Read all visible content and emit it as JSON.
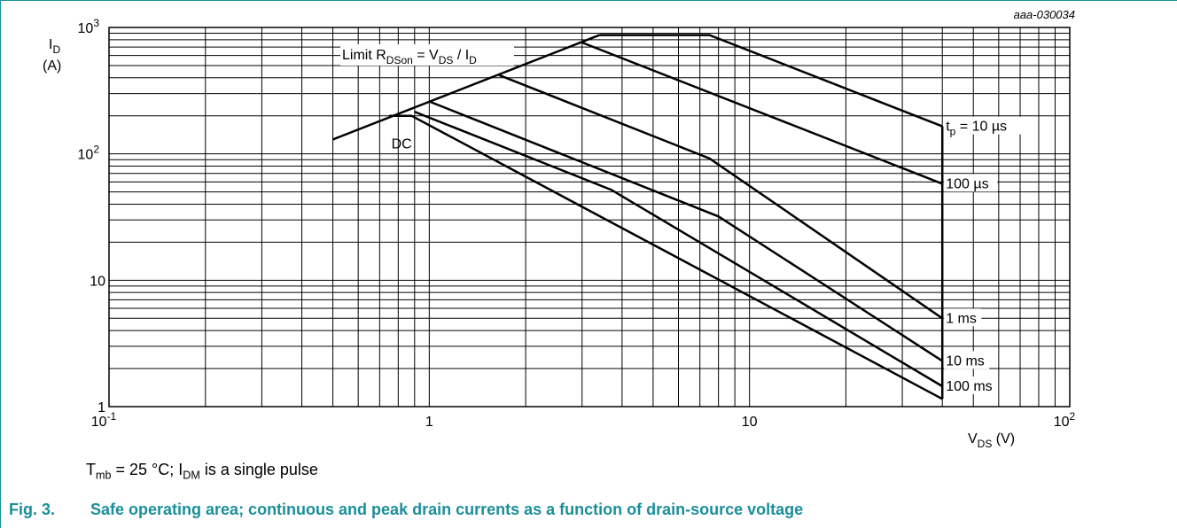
{
  "chart_data": {
    "type": "line",
    "figure_code": "aaa-030034",
    "x_scale": "log",
    "y_scale": "log",
    "xlim": [
      0.1,
      100
    ],
    "ylim": [
      1,
      1000
    ],
    "grid": true,
    "x_tick_labels": [
      {
        "value": 0.1,
        "base": "10",
        "exp": "-1"
      },
      {
        "value": 1,
        "base": "1",
        "exp": ""
      },
      {
        "value": 10,
        "base": "10",
        "exp": ""
      },
      {
        "value": 100,
        "base": "10",
        "exp": "2"
      }
    ],
    "y_tick_labels": [
      {
        "value": 1,
        "base": "1",
        "exp": ""
      },
      {
        "value": 10,
        "base": "10",
        "exp": ""
      },
      {
        "value": 100,
        "base": "10",
        "exp": "2"
      },
      {
        "value": 1000,
        "base": "10",
        "exp": "3"
      }
    ],
    "ylabel": {
      "main": "I",
      "sub": "D",
      "unit": "(A)"
    },
    "xlabel": {
      "main": "V",
      "sub": "DS",
      "unit": " (V)"
    },
    "limit_label": {
      "prefix": "Limit R",
      "sub1": "DSon",
      "mid": " = V",
      "sub2": "DS",
      "sep": " / I",
      "sub3": "D"
    },
    "series": [
      {
        "name": "Limit RDSon",
        "label": "",
        "x": [
          0.5,
          3.4
        ],
        "y": [
          130,
          870
        ]
      },
      {
        "name": "tp = 10 µs",
        "label": "tp = 10 µs",
        "x": [
          3.4,
          7.5,
          40
        ],
        "y": [
          870,
          870,
          165
        ]
      },
      {
        "name": "100 µs",
        "label": "100 µs",
        "x": [
          3.0,
          40
        ],
        "y": [
          760,
          58
        ]
      },
      {
        "name": "1 ms",
        "label": "1 ms",
        "x": [
          1.65,
          7.5,
          40
        ],
        "y": [
          420,
          92,
          5
        ]
      },
      {
        "name": "10 ms",
        "label": "10 ms",
        "x": [
          1.0,
          8.0,
          40
        ],
        "y": [
          260,
          32,
          2.3
        ]
      },
      {
        "name": "100 ms",
        "label": "100 ms",
        "x": [
          0.9,
          3.7,
          40
        ],
        "y": [
          215,
          52,
          1.45
        ]
      },
      {
        "name": "DC",
        "label": "DC",
        "x": [
          0.75,
          0.88,
          40
        ],
        "y": [
          200,
          200,
          1.15
        ]
      },
      {
        "name": "Vmax",
        "label": "",
        "x": [
          40,
          40
        ],
        "y": [
          1.15,
          165
        ]
      }
    ],
    "note": {
      "t": "T",
      "tsub": "mb",
      "mid": " = 25 °C; I",
      "isub": "DM",
      "end": " is a single pulse"
    }
  },
  "caption": {
    "fig": "Fig. 3.",
    "text": "Safe operating area; continuous and peak drain currents as a function of drain-source voltage"
  }
}
